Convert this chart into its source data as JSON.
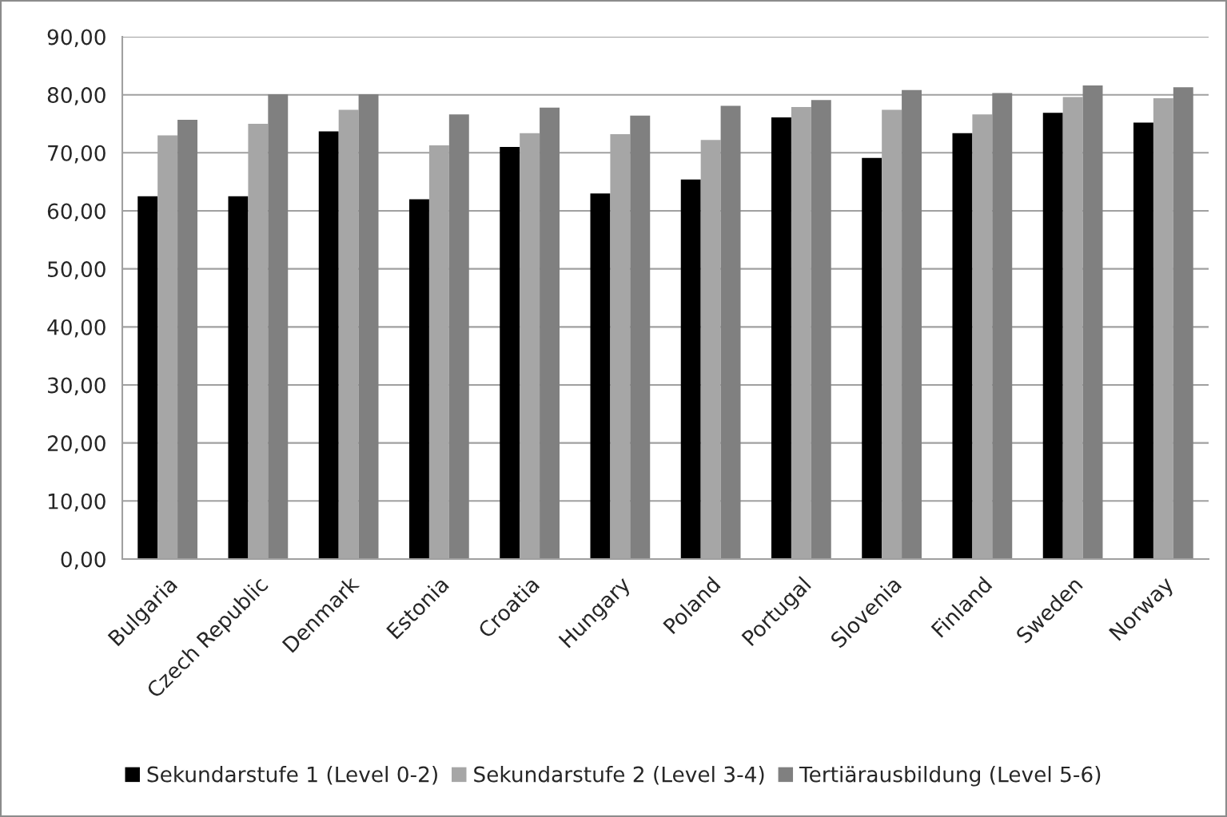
{
  "chart_data": {
    "type": "bar",
    "categories": [
      "Bulgaria",
      "Czech Republic",
      "Denmark",
      "Estonia",
      "Croatia",
      "Hungary",
      "Poland",
      "Portugal",
      "Slovenia",
      "Finland",
      "Sweden",
      "Norway"
    ],
    "series": [
      {
        "name": "Sekundarstufe 1 (Level 0-2)",
        "color": "#000000",
        "values": [
          62.5,
          62.5,
          73.7,
          62.0,
          71.0,
          63.0,
          65.4,
          76.1,
          69.1,
          73.4,
          76.9,
          75.2
        ]
      },
      {
        "name": "Sekundarstufe 2 (Level 3-4)",
        "color": "#a6a6a6",
        "values": [
          73.0,
          75.0,
          77.4,
          71.3,
          73.4,
          73.2,
          72.2,
          77.9,
          77.4,
          76.6,
          79.6,
          79.4
        ]
      },
      {
        "name": "Tertiärausbildung (Level 5-6)",
        "color": "#808080",
        "values": [
          75.7,
          80.1,
          80.1,
          76.6,
          77.8,
          76.4,
          78.1,
          79.1,
          80.8,
          80.3,
          81.6,
          81.3
        ]
      }
    ],
    "ylim": [
      0,
      90
    ],
    "yticks": [
      {
        "value": 0,
        "label": "0,00"
      },
      {
        "value": 10,
        "label": "10,00"
      },
      {
        "value": 20,
        "label": "20,00"
      },
      {
        "value": 30,
        "label": "30,00"
      },
      {
        "value": 40,
        "label": "40,00"
      },
      {
        "value": 50,
        "label": "50,00"
      },
      {
        "value": 60,
        "label": "60,00"
      },
      {
        "value": 70,
        "label": "70,00"
      },
      {
        "value": 80,
        "label": "80,00"
      },
      {
        "value": 90,
        "label": "90,00"
      }
    ],
    "grid": "y",
    "legend": "bottom"
  }
}
